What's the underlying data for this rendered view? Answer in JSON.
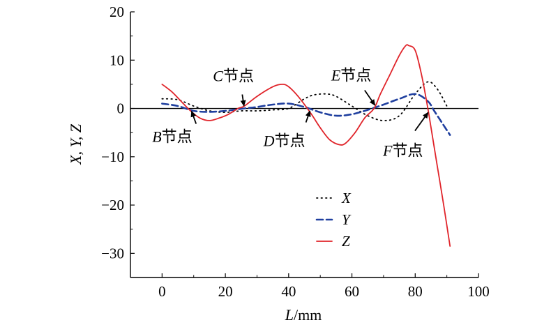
{
  "chart_data": {
    "type": "line",
    "xlabel_italic": "L",
    "xlabel_rest": "/mm",
    "ylabel": "X, Y, Z",
    "xlim": [
      -10,
      100
    ],
    "ylim": [
      -35,
      20
    ],
    "xticks": [
      0,
      20,
      40,
      60,
      80,
      100
    ],
    "yticks": [
      20,
      10,
      0,
      -10,
      -20,
      -30
    ],
    "ytick_labels": [
      "20",
      "10",
      "0",
      "−10",
      "−20",
      "−30"
    ],
    "legend_position": "center",
    "series": [
      {
        "name": "X",
        "style": "dotted",
        "color": "#000000",
        "x": [
          0,
          5,
          10,
          15,
          20,
          25,
          30,
          35,
          40,
          45,
          48,
          52,
          55,
          60,
          65,
          70,
          75,
          80,
          84,
          87,
          90
        ],
        "y": [
          2,
          1.8,
          0.5,
          -0.5,
          -0.8,
          -0.5,
          -0.5,
          -0.3,
          0,
          2,
          2.8,
          3,
          2.5,
          0.5,
          -1.5,
          -2.5,
          -1.5,
          3,
          5.5,
          4,
          0.5
        ]
      },
      {
        "name": "Y",
        "style": "dashed",
        "color": "#1f3f9f",
        "x": [
          0,
          5,
          10,
          15,
          20,
          26,
          30,
          35,
          40,
          45,
          50,
          55,
          60,
          65,
          70,
          75,
          80,
          84,
          86,
          88,
          91
        ],
        "y": [
          1,
          0.5,
          -0.5,
          -0.7,
          -0.5,
          0,
          0.3,
          0.8,
          1,
          0.3,
          -0.8,
          -1.5,
          -1.2,
          -0.3,
          0.8,
          2,
          3,
          1.5,
          -0.5,
          -2.5,
          -5.5
        ]
      },
      {
        "name": "Z",
        "style": "solid",
        "color": "#e0242a",
        "x": [
          0,
          3,
          6,
          9,
          12,
          15,
          18,
          21,
          24,
          26,
          30,
          35,
          38,
          40,
          43,
          47,
          50,
          53,
          56,
          58,
          61,
          64,
          67,
          69,
          72,
          75,
          77,
          78,
          80,
          82,
          84,
          85,
          87,
          89,
          91
        ],
        "y": [
          5,
          3.5,
          1.5,
          -0.5,
          -2,
          -2.5,
          -2,
          -1.2,
          0,
          0.5,
          2.5,
          4.5,
          5,
          4.5,
          2.5,
          -1,
          -4,
          -6.5,
          -7.5,
          -7.2,
          -5,
          -2,
          0,
          3,
          7,
          11,
          13,
          13,
          12,
          7,
          0,
          -4,
          -12,
          -20,
          -28.5
        ]
      }
    ],
    "annotations": [
      {
        "letter": "B",
        "suffix": "节点",
        "point": [
          9,
          0
        ]
      },
      {
        "letter": "C",
        "suffix": "节点",
        "point": [
          26,
          0
        ]
      },
      {
        "letter": "D",
        "suffix": "节点",
        "point": [
          47,
          0
        ]
      },
      {
        "letter": "E",
        "suffix": "节点",
        "point": [
          68,
          0
        ]
      },
      {
        "letter": "F",
        "suffix": "节点",
        "point": [
          85,
          0
        ]
      }
    ]
  }
}
